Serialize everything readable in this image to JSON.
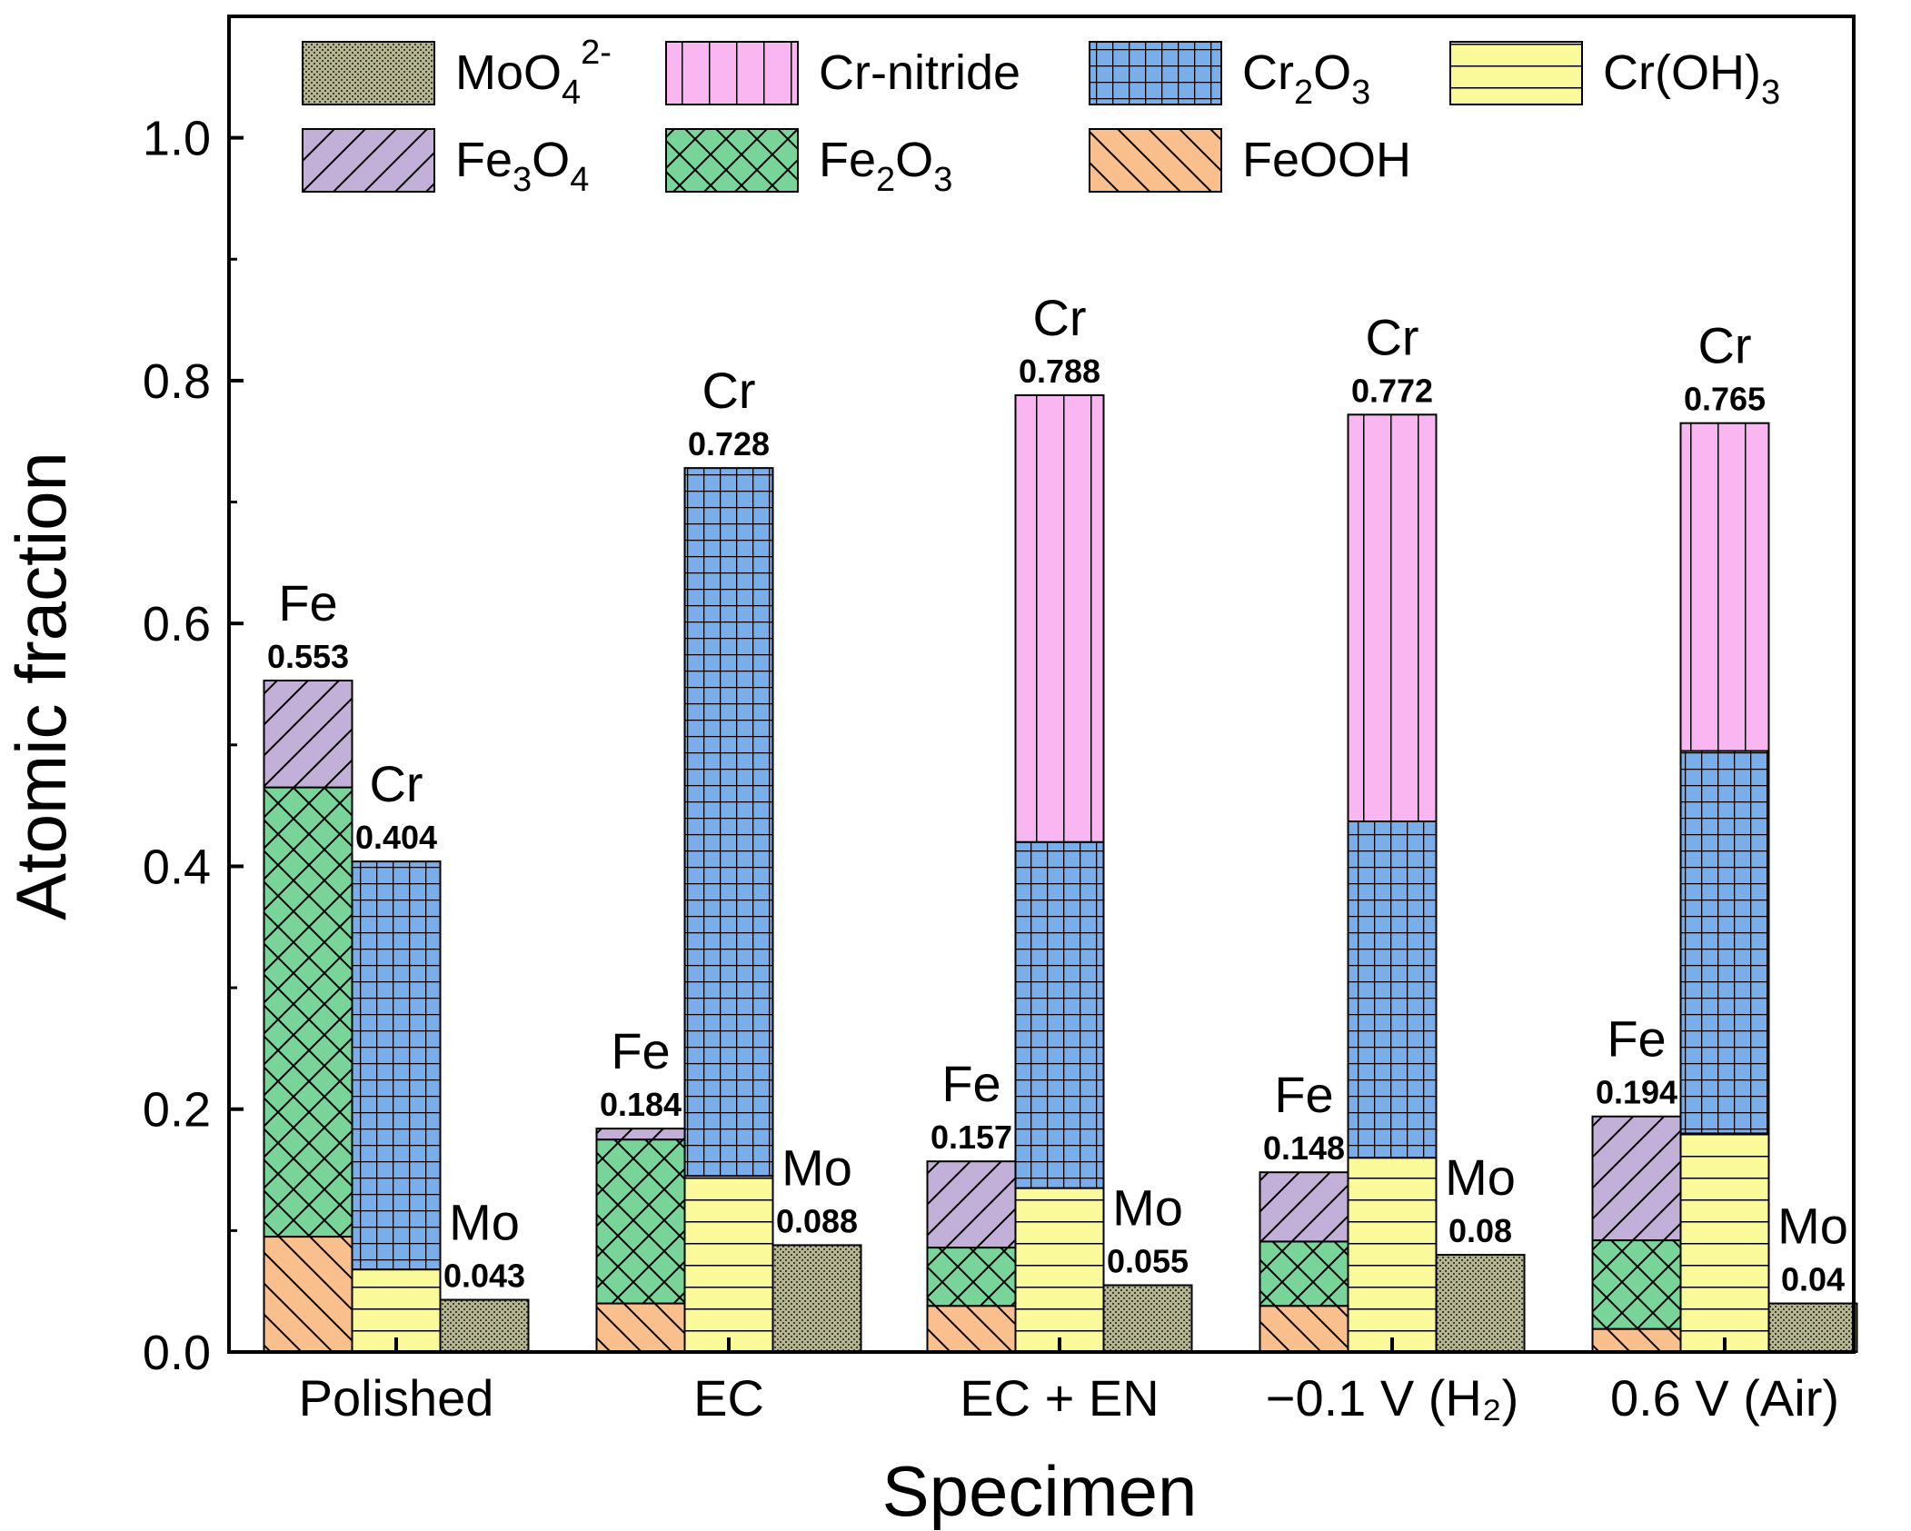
{
  "chart_data": {
    "type": "bar",
    "stacked": true,
    "title": "",
    "xlabel": "Specimen",
    "ylabel": "Atomic fraction",
    "ylim": [
      0,
      1.1
    ],
    "yticks": [
      "0.0",
      "0.2",
      "0.4",
      "0.6",
      "0.8",
      "1.0"
    ],
    "categories": [
      "Polished",
      "EC",
      "EC + EN",
      "−0.1 V (H₂)",
      "0.6 V (Air)"
    ],
    "legend": [
      {
        "key": "MoO4",
        "base": "MoO",
        "sub": "4",
        "sup": "2-",
        "color": "#b5b594",
        "pattern": "dots"
      },
      {
        "key": "Crnitride",
        "base": "Cr-nitride",
        "color": "#f9b6f0",
        "pattern": "vlines"
      },
      {
        "key": "Cr2O3",
        "base": "Cr",
        "sub": "2",
        "base2": "O",
        "sub2": "3",
        "color": "#79aeea",
        "pattern": "grid"
      },
      {
        "key": "CrOH3",
        "base": "Cr(OH)",
        "sub": "3",
        "color": "#fafa9a",
        "pattern": "hlines"
      },
      {
        "key": "Fe3O4",
        "base": "Fe",
        "sub": "3",
        "base2": "O",
        "sub2": "4",
        "color": "#c3b0d9",
        "pattern": "fdiag"
      },
      {
        "key": "Fe2O3",
        "base": "Fe",
        "sub": "2",
        "base2": "O",
        "sub2": "3",
        "color": "#79d49a",
        "pattern": "cross"
      },
      {
        "key": "FeOOH",
        "base": "FeOOH",
        "color": "#f9c08e",
        "pattern": "bdiag"
      }
    ],
    "groups": [
      {
        "category": "Polished",
        "bars": [
          {
            "element": "Fe",
            "total": "0.553",
            "segments": [
              {
                "key": "FeOOH",
                "value": 0.095
              },
              {
                "key": "Fe2O3",
                "value": 0.37
              },
              {
                "key": "Fe3O4",
                "value": 0.088
              }
            ]
          },
          {
            "element": "Cr",
            "total": "0.404",
            "segments": [
              {
                "key": "CrOH3",
                "value": 0.068
              },
              {
                "key": "Cr2O3",
                "value": 0.336
              }
            ]
          },
          {
            "element": "Mo",
            "total": "0.043",
            "segments": [
              {
                "key": "MoO4",
                "value": 0.043
              }
            ]
          }
        ]
      },
      {
        "category": "EC",
        "bars": [
          {
            "element": "Fe",
            "total": "0.184",
            "segments": [
              {
                "key": "FeOOH",
                "value": 0.04
              },
              {
                "key": "Fe2O3",
                "value": 0.135
              },
              {
                "key": "Fe3O4",
                "value": 0.009
              }
            ]
          },
          {
            "element": "Cr",
            "total": "0.728",
            "segments": [
              {
                "key": "CrOH3",
                "value": 0.145
              },
              {
                "key": "Cr2O3",
                "value": 0.583
              }
            ]
          },
          {
            "element": "Mo",
            "total": "0.088",
            "segments": [
              {
                "key": "MoO4",
                "value": 0.088
              }
            ]
          }
        ]
      },
      {
        "category": "EC + EN",
        "bars": [
          {
            "element": "Fe",
            "total": "0.157",
            "segments": [
              {
                "key": "FeOOH",
                "value": 0.038
              },
              {
                "key": "Fe2O3",
                "value": 0.048
              },
              {
                "key": "Fe3O4",
                "value": 0.071
              }
            ]
          },
          {
            "element": "Cr",
            "total": "0.788",
            "segments": [
              {
                "key": "CrOH3",
                "value": 0.135
              },
              {
                "key": "Cr2O3",
                "value": 0.285
              },
              {
                "key": "Crnitride",
                "value": 0.368
              }
            ]
          },
          {
            "element": "Mo",
            "total": "0.055",
            "segments": [
              {
                "key": "MoO4",
                "value": 0.055
              }
            ]
          }
        ]
      },
      {
        "category": "−0.1 V (H₂)",
        "bars": [
          {
            "element": "Fe",
            "total": "0.148",
            "segments": [
              {
                "key": "FeOOH",
                "value": 0.038
              },
              {
                "key": "Fe2O3",
                "value": 0.053
              },
              {
                "key": "Fe3O4",
                "value": 0.057
              }
            ]
          },
          {
            "element": "Cr",
            "total": "0.772",
            "segments": [
              {
                "key": "CrOH3",
                "value": 0.16
              },
              {
                "key": "Cr2O3",
                "value": 0.277
              },
              {
                "key": "Crnitride",
                "value": 0.335
              }
            ]
          },
          {
            "element": "Mo",
            "total": "0.08",
            "segments": [
              {
                "key": "MoO4",
                "value": 0.08
              }
            ]
          }
        ]
      },
      {
        "category": "0.6 V (Air)",
        "bars": [
          {
            "element": "Fe",
            "total": "0.194",
            "segments": [
              {
                "key": "FeOOH",
                "value": 0.019
              },
              {
                "key": "Fe2O3",
                "value": 0.073
              },
              {
                "key": "Fe3O4",
                "value": 0.102
              }
            ]
          },
          {
            "element": "Cr",
            "total": "0.765",
            "segments": [
              {
                "key": "CrOH3",
                "value": 0.18
              },
              {
                "key": "Cr2O3",
                "value": 0.315
              },
              {
                "key": "Crnitride",
                "value": 0.27
              }
            ]
          },
          {
            "element": "Mo",
            "total": "0.04",
            "segments": [
              {
                "key": "MoO4",
                "value": 0.04
              }
            ]
          }
        ]
      }
    ]
  }
}
